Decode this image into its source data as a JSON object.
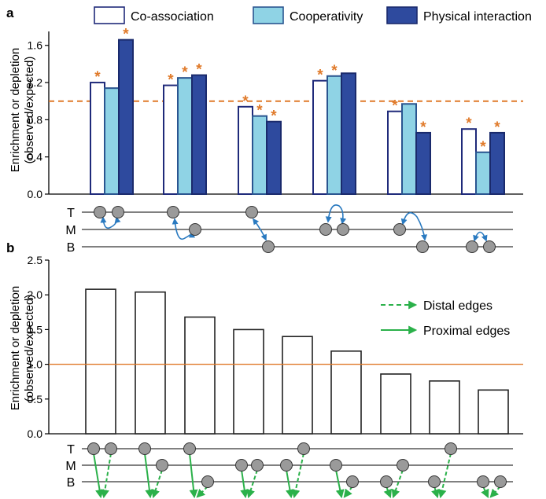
{
  "panel_a_label": "a",
  "panel_b_label": "b",
  "colors": {
    "coassoc_fill": "#ffffff",
    "coassoc_stroke": "#1f2a7a",
    "coop_fill": "#8fd3e5",
    "coop_stroke": "#2a5590",
    "phys_fill": "#2e4a9e",
    "phys_stroke": "#1a2a6c",
    "star": "#e07a2a",
    "ref_line": "#e07a2a",
    "node_fill": "#9a9a9a",
    "blue_arrow": "#2a7ac0",
    "green_arrow": "#2bb14a"
  },
  "track_labels": [
    "T",
    "M",
    "B"
  ],
  "chart_data": [
    {
      "type": "bar",
      "panel": "a",
      "ylabel_line1": "Enrichment or depletion",
      "ylabel_line2": "(observed/expected)",
      "ylim": [
        0,
        1.75
      ],
      "yticks": [
        "0.0",
        "0.4",
        "0.8",
        "1.2",
        "1.6"
      ],
      "ytick_values": [
        0,
        0.4,
        0.8,
        1.2,
        1.6
      ],
      "reference_line": 1.0,
      "reference_style": "dashed",
      "legend_position": "top",
      "series": [
        {
          "name": "Co-association",
          "values": [
            1.2,
            1.17,
            0.94,
            1.22,
            0.89,
            0.7
          ],
          "significant": [
            true,
            true,
            true,
            true,
            true,
            true
          ]
        },
        {
          "name": "Cooperativity",
          "values": [
            1.14,
            1.25,
            0.84,
            1.27,
            0.97,
            0.45
          ],
          "significant": [
            false,
            true,
            true,
            true,
            false,
            true
          ]
        },
        {
          "name": "Physical interaction",
          "values": [
            1.66,
            1.28,
            0.78,
            1.3,
            0.66,
            0.66
          ],
          "significant": [
            true,
            true,
            true,
            false,
            true,
            true
          ]
        }
      ],
      "significance_marker": "*"
    },
    {
      "type": "bar",
      "panel": "b",
      "ylabel_line1": "Enrichment or depletion",
      "ylabel_line2": "(observed/expected)",
      "ylim": [
        0,
        2.5
      ],
      "yticks": [
        "0.0",
        "0.5",
        "1.0",
        "1.5",
        "2.0",
        "2.5"
      ],
      "ytick_values": [
        0,
        0.5,
        1.0,
        1.5,
        2.0,
        2.5
      ],
      "reference_line": 1.0,
      "reference_style": "solid",
      "values": [
        2.08,
        2.04,
        1.68,
        1.5,
        1.4,
        1.19,
        0.86,
        0.76,
        0.63
      ],
      "legend": [
        {
          "label": "Distal edges",
          "style": "dashed"
        },
        {
          "label": "Proximal edges",
          "style": "solid"
        }
      ],
      "legend_position": "right"
    }
  ]
}
